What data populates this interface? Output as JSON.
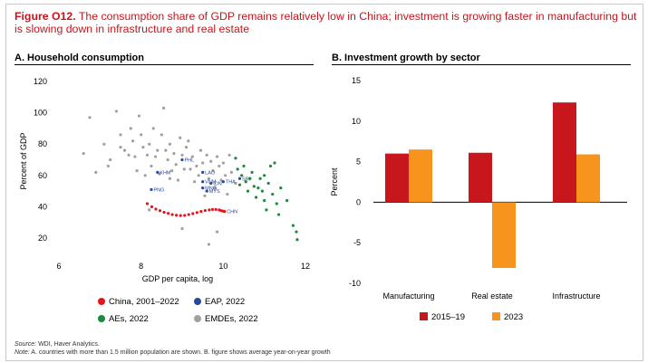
{
  "figure": {
    "label": "Figure O12.",
    "title": "The consumption share of GDP remains relatively low in China; investment is growing faster in manufacturing but is slowing down in infrastructure and real estate"
  },
  "panelA": {
    "title": "A. Household consumption"
  },
  "panelB": {
    "title": "B. Investment growth by sector"
  },
  "colors": {
    "china": "#e8141d",
    "eap": "#2847a0",
    "aes": "#1b8a3c",
    "emdes": "#a0a0a0",
    "bar2015": "#c8161d",
    "bar2023": "#f7941d",
    "title": "#c5161d"
  },
  "source": {
    "label": "Source:",
    "text": "WDI, Haver Analytics."
  },
  "note": {
    "label": "Note:",
    "text": "A. countries with more than 1.5 million population are shown. B. figure shows average year-on-year growth"
  },
  "chart_data": [
    {
      "type": "scatter",
      "title": "A. Household consumption",
      "xlabel": "GDP per capita, log",
      "ylabel": "Percent of GDP",
      "xlim": [
        6,
        12
      ],
      "ylim": [
        10,
        125
      ],
      "xticks": [
        "6",
        "8",
        "10",
        "12"
      ],
      "yticks": [
        "120",
        "100",
        "80",
        "60",
        "40",
        "20"
      ],
      "series": [
        {
          "name": "China, 2001–2022",
          "color": "#e8141d",
          "points": [
            [
              8.15,
              42
            ],
            [
              8.26,
              40
            ],
            [
              8.36,
              38.5
            ],
            [
              8.46,
              37.5
            ],
            [
              8.56,
              36.5
            ],
            [
              8.66,
              35.8
            ],
            [
              8.76,
              35
            ],
            [
              8.86,
              34.6
            ],
            [
              8.96,
              34.4
            ],
            [
              9.06,
              34.5
            ],
            [
              9.16,
              35
            ],
            [
              9.26,
              35.6
            ],
            [
              9.36,
              36.3
            ],
            [
              9.46,
              37
            ],
            [
              9.56,
              37.6
            ],
            [
              9.66,
              38
            ],
            [
              9.74,
              38.3
            ],
            [
              9.82,
              38.3
            ],
            [
              9.9,
              38
            ],
            [
              9.95,
              37.5
            ],
            [
              10.0,
              37.2
            ],
            [
              10.03,
              37
            ]
          ]
        },
        {
          "name": "EAP, 2022",
          "color": "#2847a0",
          "points": [
            [
              9.0,
              70
            ],
            [
              8.4,
              62
            ],
            [
              9.5,
              62
            ],
            [
              8.25,
              51
            ],
            [
              9.5,
              56
            ],
            [
              9.7,
              55
            ],
            [
              9.5,
              52
            ],
            [
              9.6,
              50
            ],
            [
              10.0,
              56
            ],
            [
              10.4,
              58
            ]
          ],
          "labels": [
            "PHL",
            "KHM",
            "LAO",
            "PNG",
            "VNM",
            "IDN",
            "MNG",
            "MYS",
            "THA",
            "SRI"
          ]
        },
        {
          "name": "AEs, 2022",
          "color": "#1b8a3c",
          "points": [
            [
              10.3,
              71
            ],
            [
              10.35,
              64
            ],
            [
              10.45,
              60
            ],
            [
              10.5,
              66
            ],
            [
              10.55,
              56
            ],
            [
              10.6,
              50
            ],
            [
              10.7,
              62
            ],
            [
              10.75,
              53
            ],
            [
              10.8,
              46
            ],
            [
              10.9,
              58
            ],
            [
              10.95,
              50
            ],
            [
              11.0,
              44
            ],
            [
              11.05,
              38
            ],
            [
              11.1,
              55
            ],
            [
              11.15,
              66
            ],
            [
              11.2,
              48
            ],
            [
              11.25,
              68
            ],
            [
              11.3,
              42
            ],
            [
              11.35,
              35
            ],
            [
              11.4,
              52
            ],
            [
              11.55,
              44
            ],
            [
              11.7,
              28
            ],
            [
              11.78,
              24
            ],
            [
              11.8,
              19
            ],
            [
              10.65,
              58
            ],
            [
              10.85,
              52
            ],
            [
              11.0,
              60
            ],
            [
              10.4,
              54
            ]
          ]
        },
        {
          "name": "EMDEs, 2022",
          "color": "#a0a0a0",
          "points": [
            [
              6.6,
              74
            ],
            [
              6.75,
              97
            ],
            [
              6.9,
              62
            ],
            [
              7.1,
              80
            ],
            [
              7.2,
              66
            ],
            [
              7.25,
              70
            ],
            [
              7.4,
              101
            ],
            [
              7.5,
              86
            ],
            [
              7.6,
              76
            ],
            [
              7.7,
              73
            ],
            [
              7.75,
              90
            ],
            [
              7.8,
              82
            ],
            [
              7.85,
              72
            ],
            [
              7.9,
              63
            ],
            [
              7.95,
              98
            ],
            [
              8.0,
              86
            ],
            [
              8.05,
              78
            ],
            [
              8.1,
              60
            ],
            [
              8.15,
              73
            ],
            [
              8.2,
              80
            ],
            [
              8.25,
              66
            ],
            [
              8.3,
              90
            ],
            [
              8.35,
              72
            ],
            [
              8.4,
              76
            ],
            [
              8.45,
              61
            ],
            [
              8.5,
              86
            ],
            [
              8.55,
              103
            ],
            [
              8.6,
              76
            ],
            [
              8.65,
              70
            ],
            [
              8.7,
              80
            ],
            [
              8.75,
              63
            ],
            [
              8.8,
              74
            ],
            [
              8.85,
              67
            ],
            [
              8.9,
              57
            ],
            [
              8.95,
              84
            ],
            [
              9.0,
              73
            ],
            [
              9.05,
              64
            ],
            [
              9.1,
              78
            ],
            [
              9.15,
              82
            ],
            [
              9.2,
              64
            ],
            [
              9.25,
              72
            ],
            [
              9.3,
              56
            ],
            [
              9.35,
              66
            ],
            [
              9.4,
              60
            ],
            [
              9.45,
              76
            ],
            [
              9.5,
              68
            ],
            [
              9.55,
              47
            ],
            [
              9.6,
              73
            ],
            [
              9.65,
              58
            ],
            [
              9.7,
              69
            ],
            [
              9.75,
              63
            ],
            [
              9.8,
              52
            ],
            [
              9.85,
              72
            ],
            [
              9.9,
              66
            ],
            [
              9.95,
              57
            ],
            [
              10.0,
              68
            ],
            [
              10.05,
              60
            ],
            [
              10.1,
              48
            ],
            [
              10.15,
              73
            ],
            [
              10.2,
              62
            ],
            [
              10.3,
              55
            ],
            [
              9.65,
              16
            ],
            [
              9.85,
              24
            ],
            [
              8.2,
              38
            ],
            [
              9.0,
              26
            ],
            [
              7.5,
              78
            ],
            [
              8.7,
              58
            ]
          ]
        }
      ]
    },
    {
      "type": "bar",
      "title": "B. Investment growth by sector",
      "ylabel": "Percent",
      "ylim": [
        -10,
        15
      ],
      "yticks": [
        "15",
        "10",
        "5",
        "0",
        "-5",
        "-10"
      ],
      "categories": [
        "Manufacturing",
        "Real estate",
        "Infrastructure"
      ],
      "series": [
        {
          "name": "2015–19",
          "color": "#c8161d",
          "values": [
            6.0,
            6.1,
            12.3
          ]
        },
        {
          "name": "2023",
          "color": "#f7941d",
          "values": [
            6.5,
            -8.1,
            5.9
          ]
        }
      ]
    }
  ]
}
